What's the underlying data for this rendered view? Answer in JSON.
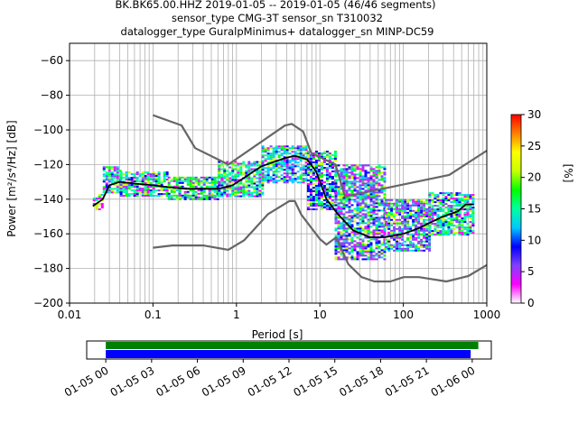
{
  "title_lines": [
    "BK.BK65.00.HHZ   2019-01-05 -- 2019-01-05  (46/46 segments)",
    "sensor_type CMG-3T sensor_sn T310032",
    "datalogger_type GuralpMinimus+ datalogger_sn MINP-DC59"
  ],
  "chart_data": {
    "type": "heatmap",
    "xlabel": "Period [s]",
    "ylabel": "Power [m²/s⁴/Hz] [dB]",
    "xscale": "log",
    "xlim": [
      0.01,
      1000
    ],
    "ylim": [
      -200,
      -50
    ],
    "x_tick_labels": [
      "0.01",
      "0.1",
      "1",
      "10",
      "100",
      "1000"
    ],
    "y_ticks": [
      -200,
      -180,
      -160,
      -140,
      -120,
      -100,
      -80,
      -60
    ],
    "grid": true,
    "colorbar": {
      "label": "[%]",
      "range": [
        0,
        30
      ],
      "ticks": [
        0,
        5,
        10,
        15,
        20,
        25,
        30
      ],
      "colors": [
        "#ffffff",
        "#ff00ff",
        "#8040ff",
        "#0000ff",
        "#00c8ff",
        "#00ffa0",
        "#00ff00",
        "#c8ff00",
        "#ffff00",
        "#ff8000",
        "#ff0000"
      ]
    },
    "mean_curve": {
      "color": "#000000",
      "points": [
        [
          0.019,
          -144
        ],
        [
          0.025,
          -140
        ],
        [
          0.03,
          -132
        ],
        [
          0.04,
          -130
        ],
        [
          0.06,
          -131
        ],
        [
          0.1,
          -132
        ],
        [
          0.15,
          -133
        ],
        [
          0.25,
          -134
        ],
        [
          0.4,
          -134
        ],
        [
          0.6,
          -134
        ],
        [
          0.9,
          -132
        ],
        [
          1.3,
          -127
        ],
        [
          2,
          -121
        ],
        [
          3,
          -118
        ],
        [
          4,
          -116
        ],
        [
          5,
          -115
        ],
        [
          7,
          -117
        ],
        [
          9,
          -124
        ],
        [
          12,
          -140
        ],
        [
          16,
          -148
        ],
        [
          25,
          -158
        ],
        [
          40,
          -162
        ],
        [
          60,
          -162
        ],
        [
          100,
          -160
        ],
        [
          150,
          -157
        ],
        [
          200,
          -154
        ],
        [
          300,
          -150
        ],
        [
          450,
          -147
        ],
        [
          560,
          -143
        ],
        [
          700,
          -143
        ]
      ]
    },
    "noise_model_high": {
      "color": "#666666",
      "points": [
        [
          0.1,
          -91.5
        ],
        [
          0.22,
          -97.4
        ],
        [
          0.32,
          -110.5
        ],
        [
          0.8,
          -120
        ],
        [
          3.8,
          -97.5
        ],
        [
          4.6,
          -96.5
        ],
        [
          6.3,
          -101
        ],
        [
          7.9,
          -113.5
        ],
        [
          15.4,
          -120
        ],
        [
          20,
          -138.5
        ],
        [
          354.8,
          -126
        ],
        [
          1000,
          -112
        ]
      ]
    },
    "noise_model_low": {
      "color": "#666666",
      "points": [
        [
          0.1,
          -168
        ],
        [
          0.17,
          -166.7
        ],
        [
          0.4,
          -166.7
        ],
        [
          0.8,
          -169.2
        ],
        [
          1.24,
          -163.7
        ],
        [
          2.4,
          -148.6
        ],
        [
          4.3,
          -141.1
        ],
        [
          5,
          -141.1
        ],
        [
          6,
          -149
        ],
        [
          10,
          -163
        ],
        [
          12,
          -166.2
        ],
        [
          15.6,
          -162.1
        ],
        [
          21.9,
          -177.5
        ],
        [
          31.6,
          -185
        ],
        [
          45,
          -187.5
        ],
        [
          70,
          -187.5
        ],
        [
          101,
          -185
        ],
        [
          154,
          -185
        ],
        [
          328,
          -187.5
        ],
        [
          600,
          -184.4
        ],
        [
          1000,
          -178
        ]
      ]
    },
    "heat_bands": [
      {
        "pmin": 0.019,
        "pmax": 0.025,
        "lo": -146,
        "hi": -137,
        "pct": 18
      },
      {
        "pmin": 0.025,
        "pmax": 0.04,
        "lo": -136,
        "hi": -121,
        "pct": 12
      },
      {
        "pmin": 0.04,
        "pmax": 0.15,
        "lo": -138,
        "hi": -124,
        "pct": 14
      },
      {
        "pmin": 0.15,
        "pmax": 0.6,
        "lo": -140,
        "hi": -127,
        "pct": 15
      },
      {
        "pmin": 0.6,
        "pmax": 2,
        "lo": -138,
        "hi": -118,
        "pct": 12
      },
      {
        "pmin": 2,
        "pmax": 7,
        "lo": -130,
        "hi": -109,
        "pct": 11
      },
      {
        "pmin": 7,
        "pmax": 15,
        "lo": -146,
        "hi": -112,
        "pct": 8
      },
      {
        "pmin": 15,
        "pmax": 60,
        "lo": -175,
        "hi": -120,
        "pct": 4
      },
      {
        "pmin": 60,
        "pmax": 200,
        "lo": -170,
        "hi": -140,
        "pct": 5
      },
      {
        "pmin": 200,
        "pmax": 700,
        "lo": -160,
        "hi": -136,
        "pct": 14
      }
    ],
    "timeline": {
      "tick_labels": [
        "01-05 00",
        "01-05 03",
        "01-05 06",
        "01-05 09",
        "01-05 12",
        "01-05 15",
        "01-05 18",
        "01-05 21",
        "01-06 00"
      ],
      "start_hour": -1.25,
      "end_hour": 25.25,
      "green_bar": [
        0,
        24.4
      ],
      "blue_bar": [
        0,
        23.9
      ],
      "green_color": "#008000",
      "blue_color": "#0000ff"
    }
  }
}
